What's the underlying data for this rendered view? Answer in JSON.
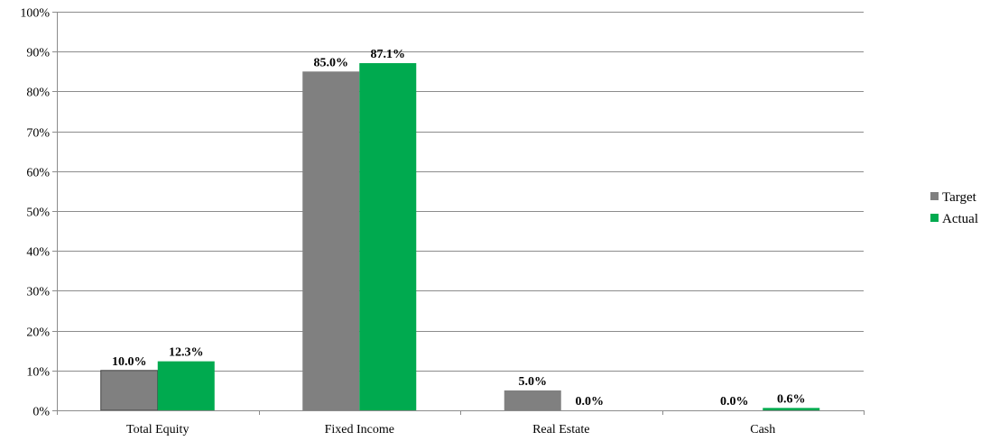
{
  "chart_data": {
    "type": "bar",
    "categories": [
      "Total Equity",
      "Fixed Income",
      "Real Estate",
      "Cash"
    ],
    "series": [
      {
        "name": "Target",
        "color": "#808080",
        "values": [
          10.0,
          85.0,
          5.0,
          0.0
        ],
        "labels": [
          "10.0%",
          "85.0%",
          "5.0%",
          "0.0%"
        ]
      },
      {
        "name": "Actual",
        "color": "#00AA4F",
        "values": [
          12.3,
          87.1,
          0.0,
          0.6
        ],
        "labels": [
          "12.3%",
          "87.1%",
          "0.0%",
          "0.6%"
        ]
      }
    ],
    "y_ticks": [
      "0%",
      "10%",
      "20%",
      "30%",
      "40%",
      "50%",
      "60%",
      "70%",
      "80%",
      "90%",
      "100%"
    ],
    "ylim": [
      0,
      100
    ],
    "title": "",
    "xlabel": "",
    "ylabel": "",
    "grid": true,
    "legend_position": "right"
  }
}
